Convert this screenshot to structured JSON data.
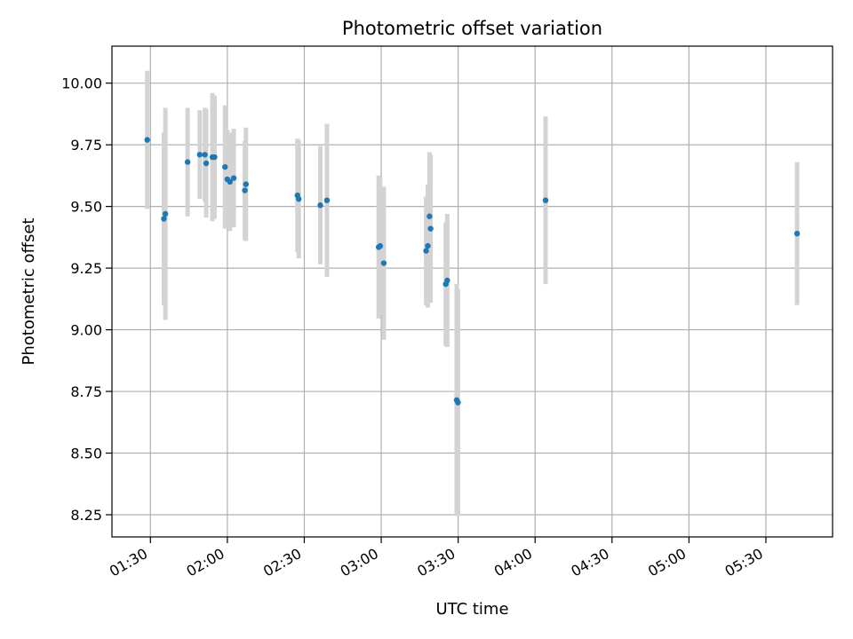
{
  "chart_data": {
    "type": "scatter",
    "title": "Photometric offset variation",
    "xlabel": "UTC time",
    "ylabel": "Photometric offset",
    "x_unit": "UTC clock time (HH:MM)",
    "xlim": [
      "01:15",
      "05:56"
    ],
    "ylim": [
      8.16,
      10.15
    ],
    "grid": true,
    "colors": {
      "point": "#1f77b4",
      "errorbar": "#d3d3d3",
      "grid": "#b0b0b0"
    },
    "x_ticks": [
      "01:30",
      "02:00",
      "02:30",
      "03:00",
      "03:30",
      "04:00",
      "04:30",
      "05:00",
      "05:30"
    ],
    "y_ticks": [
      "8.25",
      "8.50",
      "8.75",
      "9.00",
      "9.25",
      "9.50",
      "9.75",
      "10.00"
    ],
    "points": [
      {
        "x": "01:28:45",
        "y": 9.77,
        "err": 0.28
      },
      {
        "x": "01:35:15",
        "y": 9.45,
        "err": 0.35
      },
      {
        "x": "01:35:50",
        "y": 9.47,
        "err": 0.43
      },
      {
        "x": "01:44:30",
        "y": 9.68,
        "err": 0.22
      },
      {
        "x": "01:49:15",
        "y": 9.71,
        "err": 0.18
      },
      {
        "x": "01:51:15",
        "y": 9.71,
        "err": 0.19
      },
      {
        "x": "01:51:45",
        "y": 9.675,
        "err": 0.22
      },
      {
        "x": "01:54:10",
        "y": 9.7,
        "err": 0.26
      },
      {
        "x": "01:55:00",
        "y": 9.7,
        "err": 0.25
      },
      {
        "x": "01:59:05",
        "y": 9.66,
        "err": 0.25
      },
      {
        "x": "02:00:00",
        "y": 9.61,
        "err": 0.2
      },
      {
        "x": "02:01:00",
        "y": 9.6,
        "err": 0.2
      },
      {
        "x": "02:02:30",
        "y": 9.615,
        "err": 0.2
      },
      {
        "x": "02:06:50",
        "y": 9.565,
        "err": 0.2
      },
      {
        "x": "02:07:15",
        "y": 9.59,
        "err": 0.23
      },
      {
        "x": "02:27:20",
        "y": 9.545,
        "err": 0.23
      },
      {
        "x": "02:27:50",
        "y": 9.53,
        "err": 0.24
      },
      {
        "x": "02:36:15",
        "y": 9.505,
        "err": 0.24
      },
      {
        "x": "02:38:50",
        "y": 9.525,
        "err": 0.31
      },
      {
        "x": "02:59:00",
        "y": 9.335,
        "err": 0.29
      },
      {
        "x": "02:59:35",
        "y": 9.34,
        "err": 0.28
      },
      {
        "x": "03:01:00",
        "y": 9.27,
        "err": 0.31
      },
      {
        "x": "03:17:30",
        "y": 9.32,
        "err": 0.22
      },
      {
        "x": "03:18:10",
        "y": 9.34,
        "err": 0.25
      },
      {
        "x": "03:18:50",
        "y": 9.46,
        "err": 0.26
      },
      {
        "x": "03:19:15",
        "y": 9.41,
        "err": 0.3
      },
      {
        "x": "03:25:10",
        "y": 9.185,
        "err": 0.25
      },
      {
        "x": "03:25:45",
        "y": 9.2,
        "err": 0.27
      },
      {
        "x": "03:29:25",
        "y": 8.715,
        "err": 0.47
      },
      {
        "x": "03:29:55",
        "y": 8.705,
        "err": 0.46
      },
      {
        "x": "04:04:05",
        "y": 9.525,
        "err": 0.34
      },
      {
        "x": "05:42:10",
        "y": 9.39,
        "err": 0.29
      }
    ]
  }
}
